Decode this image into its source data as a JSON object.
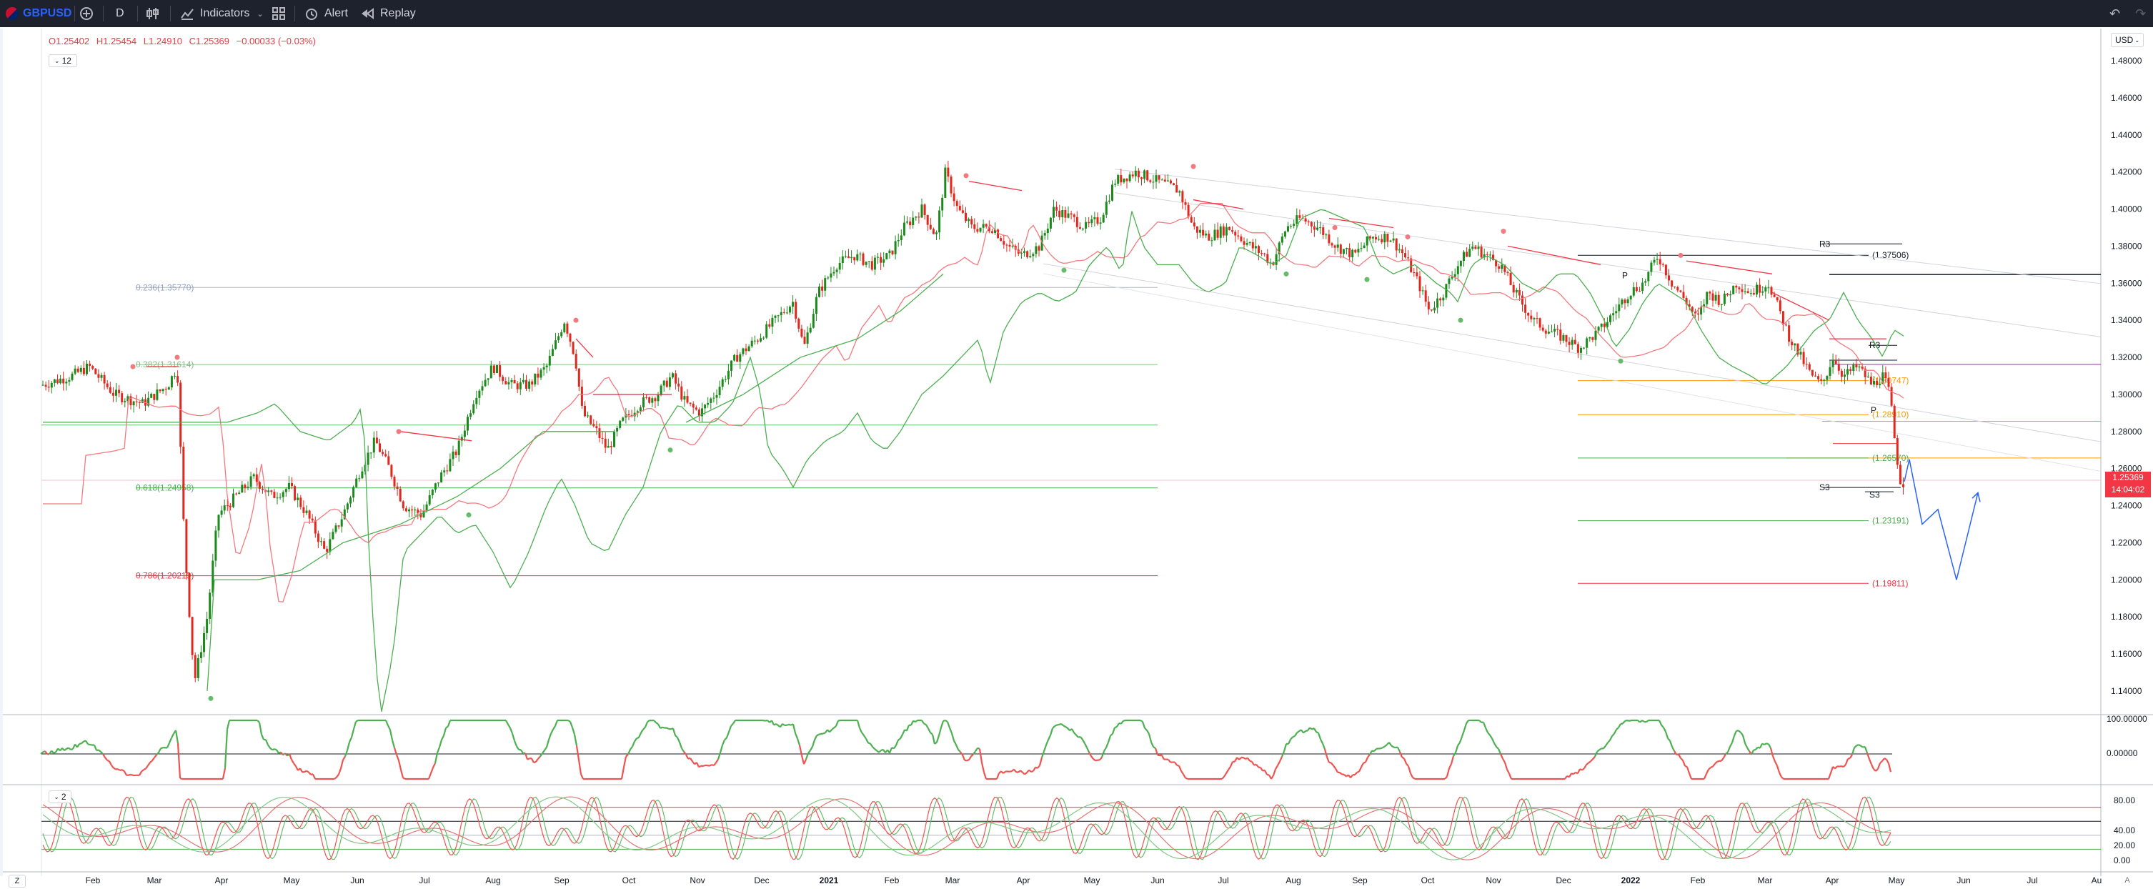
{
  "toolbar": {
    "symbol": "GBPUSD",
    "interval": "D",
    "indicators_label": "Indicators",
    "alert_label": "Alert",
    "replay_label": "Replay"
  },
  "legend": {
    "open": "O1.25402",
    "high": "H1.25454",
    "low": "L1.24910",
    "close": "C1.25369",
    "change": "−0.00033 (−0.03%)",
    "main_pane_indicator_count": "12",
    "stoch_pane_indicator_count": "2"
  },
  "price_axis": {
    "currency": "USD",
    "ticks": [
      "1.48000",
      "1.46000",
      "1.44000",
      "1.42000",
      "1.40000",
      "1.38000",
      "1.36000",
      "1.34000",
      "1.32000",
      "1.30000",
      "1.28000",
      "1.26000",
      "1.24000",
      "1.22000",
      "1.20000",
      "1.18000",
      "1.16000",
      "1.14000"
    ],
    "last_price": "1.25369",
    "countdown": "14:04:02"
  },
  "osc_axis": {
    "ticks": [
      "100.00000",
      "0.00000"
    ]
  },
  "stoch_axis": {
    "ticks": [
      "80.00",
      "40.00",
      "20.00",
      "0.00"
    ]
  },
  "time_axis": {
    "labels": [
      "Feb",
      "Mar",
      "Apr",
      "May",
      "Jun",
      "Jul",
      "Aug",
      "Sep",
      "Oct",
      "Nov",
      "Dec",
      "2021",
      "Feb",
      "Mar",
      "Apr",
      "May",
      "Jun",
      "Jul",
      "Aug",
      "Sep",
      "Oct",
      "Nov",
      "Dec",
      "2022",
      "Feb",
      "Mar",
      "Apr",
      "May",
      "Jun",
      "Jul",
      "Au"
    ]
  },
  "fib_labels": {
    "f236": "0.236(1.35770)",
    "f382": "0.382(1.31614)",
    "f618": "0.618(1.24958)",
    "f786": "0.786(1.20219)"
  },
  "pivot_labels": {
    "r3_big": "R3",
    "r3_big_value": "(1.37506)",
    "p_big": "P",
    "r3_small": "R3",
    "p_small": "P",
    "level_30747": "(1.30747)",
    "level_28910": "(1.28910)",
    "level_26570": "(1.26570)",
    "s3_big": "S3",
    "s3_small": "S3",
    "level_23191": "(1.23191)",
    "level_19811": "(1.19811)"
  },
  "bottom": {
    "left_label": "Z",
    "right_label": "A"
  },
  "colors": {
    "bull": "#089981",
    "bull_green": "#1b8a1b",
    "bear": "#f23645",
    "toolbar_bg": "#1e222d",
    "accent": "#2962ff",
    "orange": "#ff9800"
  }
}
